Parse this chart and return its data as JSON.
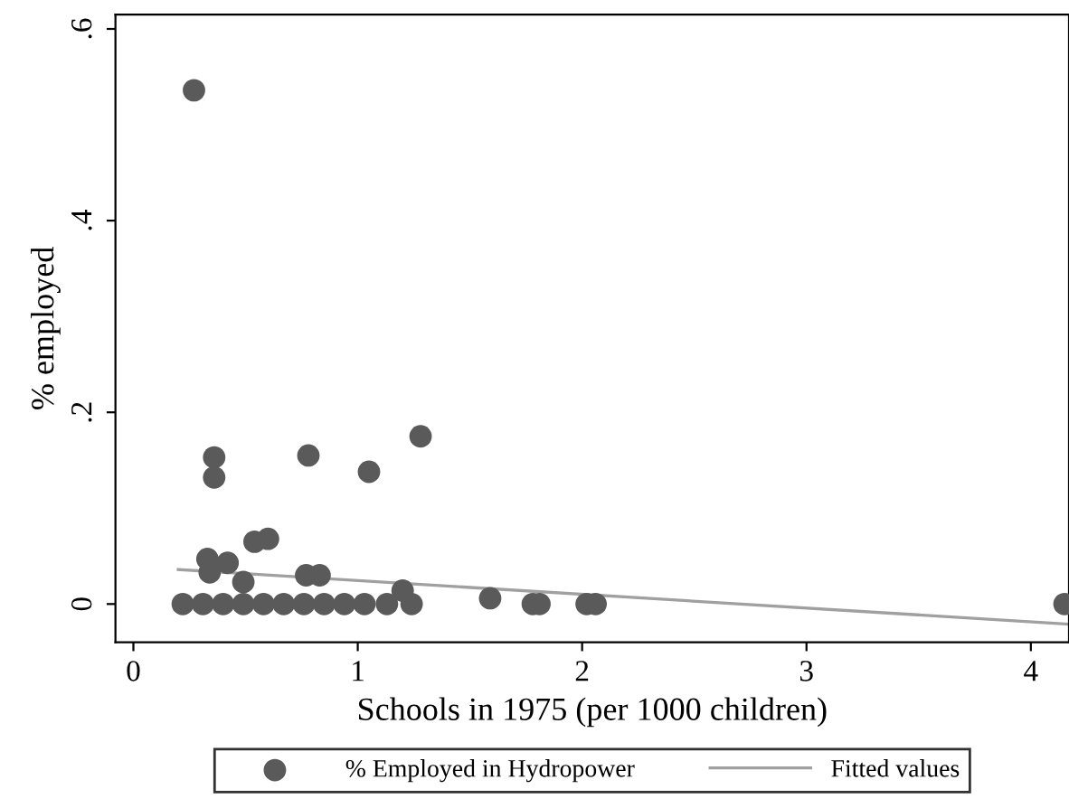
{
  "chart_data": {
    "type": "scatter",
    "xlabel": "Schools in 1975 (per 1000 children)",
    "ylabel": "% employed",
    "xlim": [
      -0.08,
      4.17
    ],
    "ylim": [
      -0.04,
      0.615
    ],
    "xticks": [
      0,
      1,
      2,
      3,
      4
    ],
    "yticks": [
      {
        "value": 0,
        "label": "0"
      },
      {
        "value": 0.2,
        "label": ".2"
      },
      {
        "value": 0.4,
        "label": ".4"
      },
      {
        "value": 0.6,
        "label": ".6"
      }
    ],
    "grid": false,
    "legend": "bottom",
    "series": [
      {
        "name": "% Employed in Hydropower",
        "marker": "circle",
        "color": "#5a5a5a",
        "x": [
          0.27,
          0.36,
          0.36,
          0.78,
          1.05,
          1.28,
          0.54,
          0.6,
          0.33,
          0.42,
          0.34,
          0.49,
          0.77,
          0.83,
          1.2,
          1.59,
          1.78,
          1.81,
          2.02,
          2.06,
          4.15,
          0.22,
          0.31,
          0.4,
          0.49,
          0.58,
          0.67,
          0.76,
          0.85,
          0.94,
          1.03,
          1.13,
          1.24
        ],
        "values": [
          0.536,
          0.153,
          0.132,
          0.155,
          0.138,
          0.175,
          0.065,
          0.068,
          0.047,
          0.043,
          0.033,
          0.023,
          0.03,
          0.03,
          0.014,
          0.006,
          0,
          0,
          0,
          0,
          0,
          0,
          0,
          0,
          0,
          0,
          0,
          0,
          0,
          0,
          0,
          0,
          0
        ]
      },
      {
        "name": "Fitted values",
        "type": "line",
        "color": "#a0a0a0",
        "x": [
          0.2,
          4.17
        ],
        "values": [
          0.036,
          -0.021
        ]
      }
    ]
  }
}
